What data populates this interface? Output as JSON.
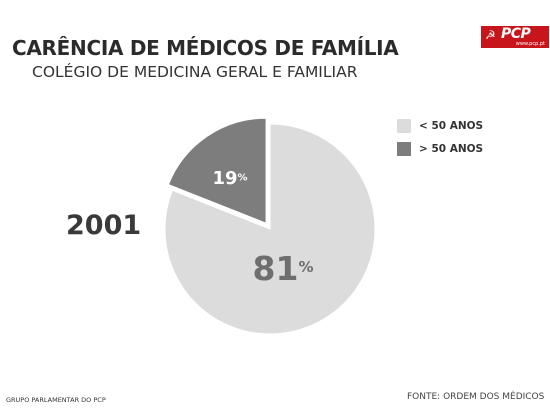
{
  "title": "CARÊNCIA DE MÉDICOS DE FAMÍLIA",
  "subtitle": "COLÉGIO DE MEDICINA GERAL E FAMILIAR",
  "logo": {
    "text": "PCP",
    "url": "www.pcp.pt",
    "symbol_icon": "hammer-sickle-icon",
    "color": "#c8141b"
  },
  "year_label": "2001",
  "footer": {
    "left": "GRUPO PARLAMENTAR DO PCP",
    "right": "FONTE: ORDEM DOS MÉDICOS"
  },
  "chart_data": {
    "type": "pie",
    "title": "CARÊNCIA DE MÉDICOS DE FAMÍLIA",
    "legend_position": "top-right",
    "slices": [
      {
        "label": "< 50 ANOS",
        "value": 81,
        "value_text": "81",
        "unit": "%",
        "color": "#dcdcdc",
        "exploded": false
      },
      {
        "label": "> 50 ANOS",
        "value": 19,
        "value_text": "19",
        "unit": "%",
        "color": "#7d7d7d",
        "exploded": true
      }
    ]
  }
}
